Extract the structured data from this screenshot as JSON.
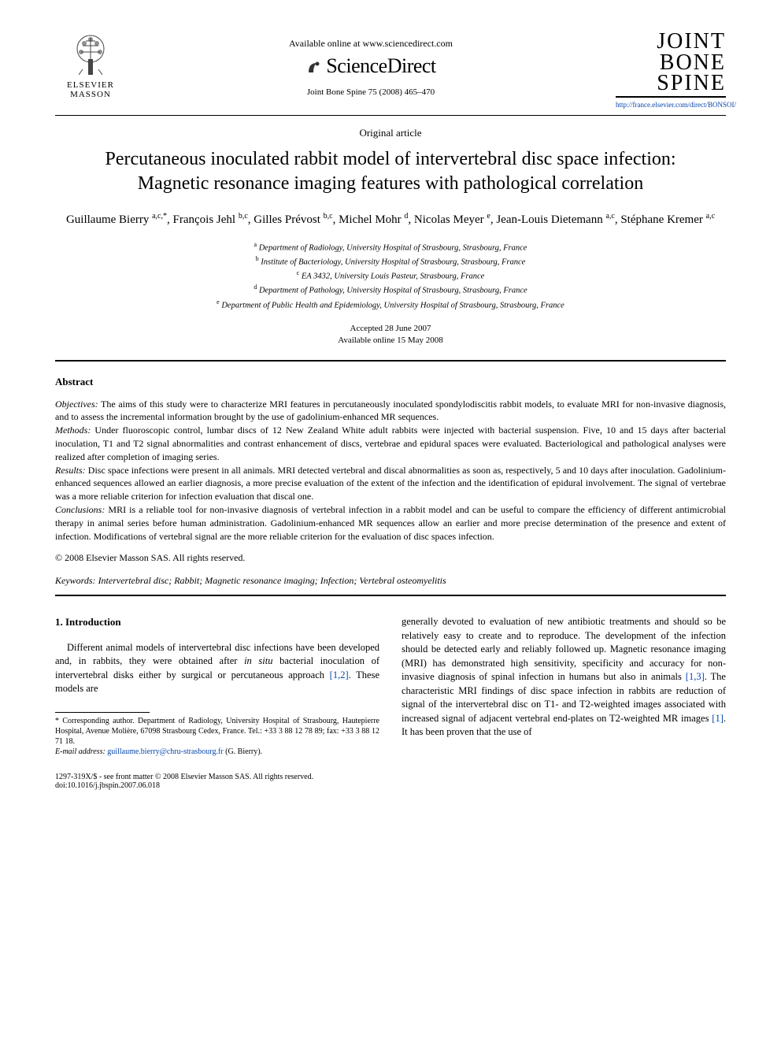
{
  "header": {
    "elsevier_label_1": "ELSEVIER",
    "elsevier_label_2": "MASSON",
    "available_text": "Available online at www.sciencedirect.com",
    "sciencedirect_text": "ScienceDirect",
    "journal_ref": "Joint Bone Spine 75 (2008) 465–470",
    "journal_title_1": "JOINT",
    "journal_title_2": "BONE",
    "journal_title_3": "SPINE",
    "journal_url": "http://france.elsevier.com/direct/BONSOI/"
  },
  "article": {
    "type": "Original article",
    "title": "Percutaneous inoculated rabbit model of intervertebral disc space infection: Magnetic resonance imaging features with pathological correlation",
    "authors_html": "Guillaume Bierry <sup>a,c,*</sup>, François Jehl <sup>b,c</sup>, Gilles Prévost <sup>b,c</sup>, Michel Mohr <sup>d</sup>, Nicolas Meyer <sup>e</sup>, Jean-Louis Dietemann <sup>a,c</sup>, Stéphane Kremer <sup>a,c</sup>",
    "affiliations": {
      "a": "Department of Radiology, University Hospital of Strasbourg, Strasbourg, France",
      "b": "Institute of Bacteriology, University Hospital of Strasbourg, Strasbourg, France",
      "c": "EA 3432, University Louis Pasteur, Strasbourg, France",
      "d": "Department of Pathology, University Hospital of Strasbourg, Strasbourg, France",
      "e": "Department of Public Health and Epidemiology, University Hospital of Strasbourg, Strasbourg, France"
    },
    "accepted": "Accepted 28 June 2007",
    "available_online": "Available online 15 May 2008"
  },
  "abstract": {
    "heading": "Abstract",
    "objectives_label": "Objectives:",
    "objectives": " The aims of this study were to characterize MRI features in percutaneously inoculated spondylodiscitis rabbit models, to evaluate MRI for non-invasive diagnosis, and to assess the incremental information brought by the use of gadolinium-enhanced MR sequences.",
    "methods_label": "Methods:",
    "methods": " Under fluoroscopic control, lumbar discs of 12 New Zealand White adult rabbits were injected with bacterial suspension. Five, 10 and 15 days after bacterial inoculation, T1 and T2 signal abnormalities and contrast enhancement of discs, vertebrae and epidural spaces were evaluated. Bacteriological and pathological analyses were realized after completion of imaging series.",
    "results_label": "Results:",
    "results": " Disc space infections were present in all animals. MRI detected vertebral and discal abnormalities as soon as, respectively, 5 and 10 days after inoculation. Gadolinium-enhanced sequences allowed an earlier diagnosis, a more precise evaluation of the extent of the infection and the identification of epidural involvement. The signal of vertebrae was a more reliable criterion for infection evaluation that discal one.",
    "conclusions_label": "Conclusions:",
    "conclusions": " MRI is a reliable tool for non-invasive diagnosis of vertebral infection in a rabbit model and can be useful to compare the efficiency of different antimicrobial therapy in animal series before human administration. Gadolinium-enhanced MR sequences allow an earlier and more precise determination of the presence and extent of infection. Modifications of vertebral signal are the more reliable criterion for the evaluation of disc spaces infection.",
    "copyright": "© 2008 Elsevier Masson SAS. All rights reserved.",
    "keywords_label": "Keywords:",
    "keywords": " Intervertebral disc; Rabbit; Magnetic resonance imaging; Infection; Vertebral osteomyelitis"
  },
  "body": {
    "intro_heading": "1. Introduction",
    "col1_p1_pre": "Different animal models of intervertebral disc infections have been developed and, in rabbits, they were obtained after ",
    "col1_p1_em": "in situ",
    "col1_p1_post": " bacterial inoculation of intervertebral disks either by surgical or percutaneous approach ",
    "col1_ref1": "[1,2]",
    "col1_p1_end": ". These models are",
    "col2_p1_a": "generally devoted to evaluation of new antibiotic treatments and should so be relatively easy to create and to reproduce. The development of the infection should be detected early and reliably followed up. Magnetic resonance imaging (MRI) has demonstrated high sensitivity, specificity and accuracy for non-invasive diagnosis of spinal infection in humans but also in animals ",
    "col2_ref1": "[1,3]",
    "col2_p1_b": ". The characteristic MRI findings of disc space infection in rabbits are reduction of signal of the intervertebral disc on T1- and T2-weighted images associated with increased signal of adjacent vertebral end-plates on T2-weighted MR images ",
    "col2_ref2": "[1]",
    "col2_p1_c": ". It has been proven that the use of"
  },
  "footnote": {
    "corresponding": "* Corresponding author. Department of Radiology, University Hospital of Strasbourg, Hautepierre Hospital, Avenue Molière, 67098 Strasbourg Cedex, France. Tel.: +33 3 88 12 78 89; fax: +33 3 88 12 71 18.",
    "email_label": "E-mail address:",
    "email": "guillaume.bierry@chru-strasbourg.fr",
    "email_name": " (G. Bierry)."
  },
  "footer": {
    "line1": "1297-319X/$ - see front matter © 2008 Elsevier Masson SAS. All rights reserved.",
    "line2": "doi:10.1016/j.jbspin.2007.06.018"
  },
  "colors": {
    "text": "#000000",
    "link": "#0645ad",
    "background": "#ffffff"
  }
}
